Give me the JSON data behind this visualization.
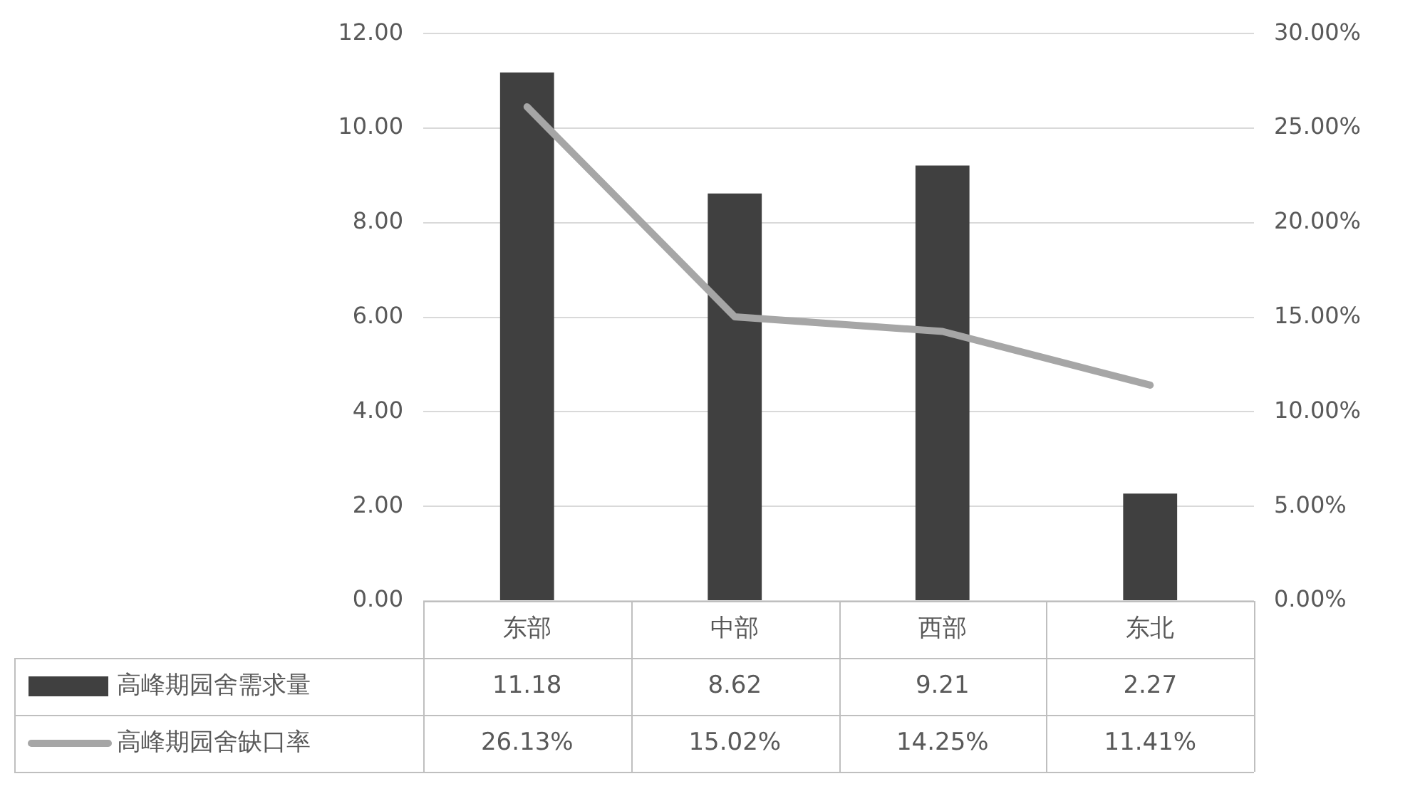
{
  "chart_data": {
    "type": "bar",
    "categories": [
      "东部",
      "中部",
      "西部",
      "东北"
    ],
    "series": [
      {
        "name": "高峰期园舍需求量",
        "color": "#404040",
        "values": [
          11.18,
          8.62,
          9.21,
          2.27
        ],
        "value_labels": [
          "11.18",
          "8.62",
          "9.21",
          "2.27"
        ]
      },
      {
        "name": "高峰期园舍缺口率",
        "type": "line",
        "axis": "y2",
        "color": "#a6a6a6",
        "values": [
          26.13,
          15.02,
          14.25,
          11.41
        ],
        "value_labels": [
          "26.13%",
          "15.02%",
          "14.25%",
          "11.41%"
        ]
      }
    ],
    "ylim": [
      0,
      12
    ],
    "yticks": [
      {
        "value": 0,
        "label": "0.00"
      },
      {
        "value": 2,
        "label": "2.00"
      },
      {
        "value": 4,
        "label": "4.00"
      },
      {
        "value": 6,
        "label": "6.00"
      },
      {
        "value": 8,
        "label": "8.00"
      },
      {
        "value": 10,
        "label": "10.00"
      },
      {
        "value": 12,
        "label": "12.00"
      }
    ],
    "y2lim": [
      0,
      30
    ],
    "y2ticks": [
      {
        "value": 0,
        "label": "0.00%"
      },
      {
        "value": 5,
        "label": "5.00%"
      },
      {
        "value": 10,
        "label": "10.00%"
      },
      {
        "value": 15,
        "label": "15.00%"
      },
      {
        "value": 20,
        "label": "20.00%"
      },
      {
        "value": 25,
        "label": "25.00%"
      },
      {
        "value": 30,
        "label": "30.00%"
      }
    ],
    "grid": "y",
    "legend": "bottom",
    "marker": "none",
    "line_style": "solid"
  }
}
